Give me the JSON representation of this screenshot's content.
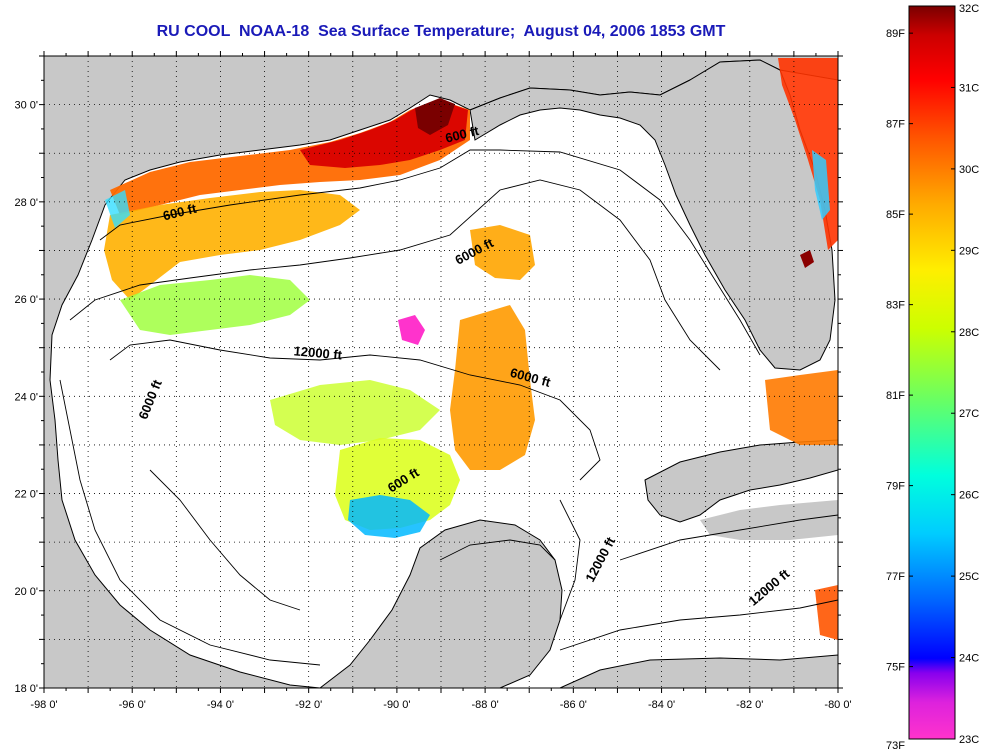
{
  "title": "RU COOL  NOAA-18  Sea Surface Temperature;  August 04, 2006 1853 GMT",
  "map": {
    "lon_labels": [
      "-98 0'",
      "-96 0'",
      "-94 0'",
      "-92 0'",
      "-90 0'",
      "-88 0'",
      "-86 0'",
      "-84 0'",
      "-82 0'",
      "-80 0'"
    ],
    "lat_labels": [
      "30 0'",
      "28 0'",
      "26 0'",
      "24 0'",
      "22 0'",
      "20 0'",
      "18 0'"
    ],
    "lon_range": [
      -98,
      -80
    ],
    "lat_range": [
      18,
      31
    ],
    "grid": "dotted",
    "colors": {
      "land": "#c8c8c8",
      "no_data": "#ffffff",
      "coastline": "#000000"
    },
    "contour_labels": [
      {
        "text": "600 ft",
        "lon": -88.5,
        "lat": 29.3,
        "angle": -14
      },
      {
        "text": "600 ft",
        "lon": -94.9,
        "lat": 27.7,
        "angle": -14
      },
      {
        "text": "6000 ft",
        "lon": -88.2,
        "lat": 26.9,
        "angle": -28
      },
      {
        "text": "12000 ft",
        "lon": -91.8,
        "lat": 24.8,
        "angle": 5
      },
      {
        "text": "6000 ft",
        "lon": -95.5,
        "lat": 23.9,
        "angle": -68
      },
      {
        "text": "6000 ft",
        "lon": -87.0,
        "lat": 24.3,
        "angle": 15
      },
      {
        "text": "600 ft",
        "lon": -89.8,
        "lat": 22.2,
        "angle": -32
      },
      {
        "text": "12000 ft",
        "lon": -85.3,
        "lat": 20.6,
        "angle": -62
      },
      {
        "text": "12000 ft",
        "lon": -81.5,
        "lat": 20.0,
        "angle": -40
      }
    ]
  },
  "colorbar": {
    "fahrenheit_labels": [
      "89F",
      "87F",
      "85F",
      "83F",
      "81F",
      "79F",
      "77F",
      "75F",
      "73F"
    ],
    "celsius_labels": [
      "32C",
      "31C",
      "30C",
      "29C",
      "28C",
      "27C",
      "26C",
      "25C",
      "24C",
      "23C"
    ],
    "range_c": [
      23,
      32
    ],
    "colormap": [
      "#ff33cc",
      "#8800ee",
      "#0000ff",
      "#00b0ff",
      "#00ffee",
      "#66ff66",
      "#ffff00",
      "#ffaa00",
      "#ff5500",
      "#ff0000",
      "#cc0000",
      "#7a0000"
    ]
  }
}
